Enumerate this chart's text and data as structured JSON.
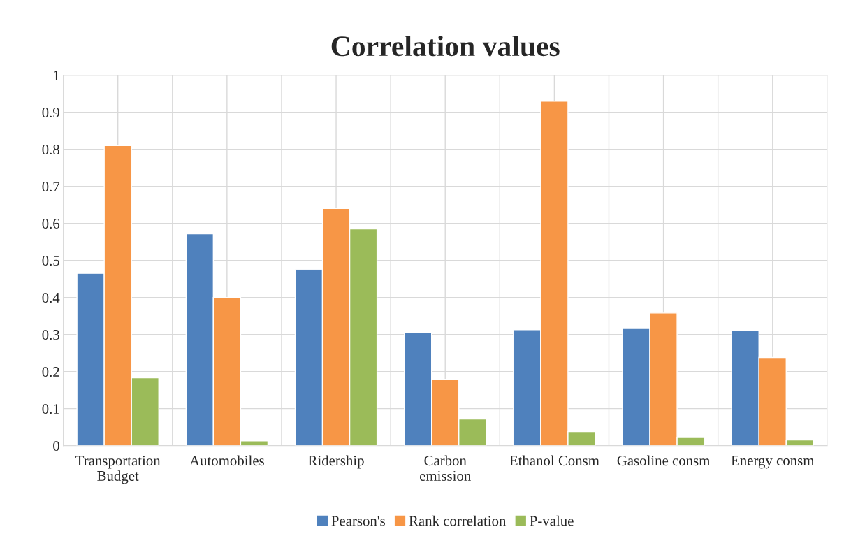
{
  "chart_data": {
    "type": "bar",
    "title": "Correlation values",
    "categories": [
      "Transportation\nBudget",
      "Automobiles",
      "Ridership",
      "Carbon\nemission",
      "Ethanol Consm",
      "Gasoline consm",
      "Energy consm"
    ],
    "series": [
      {
        "name": "Pearson's",
        "color": "#4f81bd",
        "values": [
          0.465,
          0.572,
          0.475,
          0.305,
          0.313,
          0.316,
          0.312
        ]
      },
      {
        "name": "Rank correlation",
        "color": "#f79646",
        "values": [
          0.81,
          0.4,
          0.64,
          0.178,
          0.93,
          0.358,
          0.238
        ]
      },
      {
        "name": "P-value",
        "color": "#9bbb59",
        "values": [
          0.183,
          0.013,
          0.585,
          0.072,
          0.038,
          0.022,
          0.015
        ]
      }
    ],
    "ylim": [
      0,
      1
    ],
    "yticks": [
      0,
      0.1,
      0.2,
      0.3,
      0.4,
      0.5,
      0.6,
      0.7,
      0.8,
      0.9,
      1
    ],
    "grid": true,
    "legend": "bottom"
  }
}
